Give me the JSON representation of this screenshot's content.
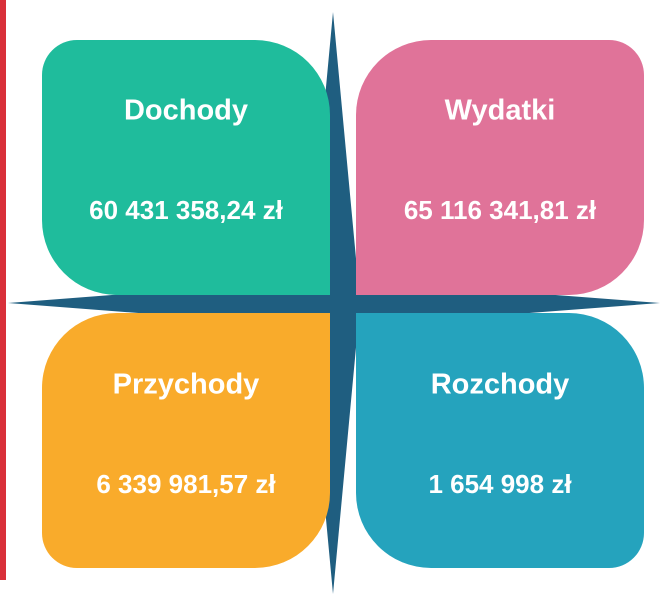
{
  "tiles": [
    {
      "label": "Dochody",
      "value": "60 431 358,24 zł"
    },
    {
      "label": "Wydatki",
      "value": "65 116 341,81 zł"
    },
    {
      "label": "Przychody",
      "value": "6 339 981,57 zł"
    },
    {
      "label": "Rozchody",
      "value": "1 654 998 zł"
    }
  ]
}
